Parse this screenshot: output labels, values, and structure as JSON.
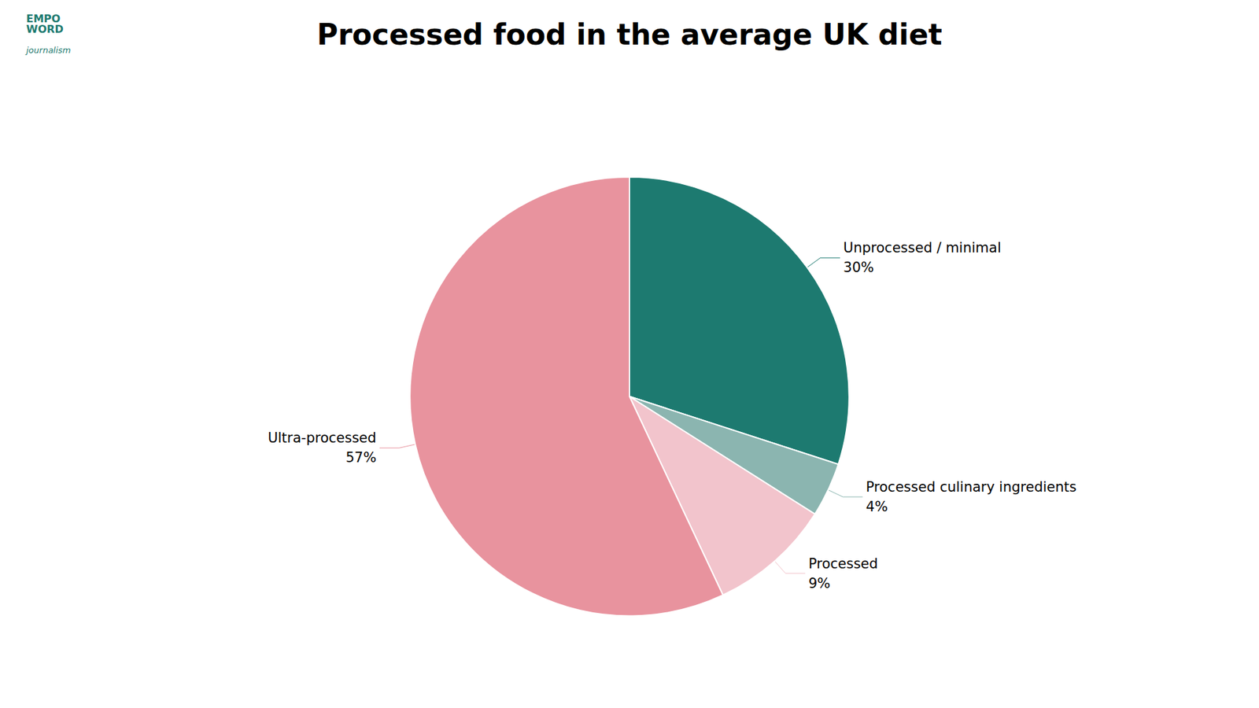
{
  "chart_data": {
    "type": "pie",
    "title": "Processed food in the average UK diet",
    "annotations": [
      "EMPO\nWORD",
      "journalism"
    ],
    "categories": [
      "Unprocessed / minimal",
      "Processed culinary ingredients",
      "Processed",
      "Ultra-processed"
    ],
    "values": [
      30,
      4,
      9,
      57
    ],
    "value_labels": [
      "30%",
      "4%",
      "9%",
      "57%"
    ],
    "data_labels": true,
    "colors": [
      "#1d7a70",
      "#8bb5b0",
      "#f2c4cc",
      "#e8939e"
    ]
  }
}
